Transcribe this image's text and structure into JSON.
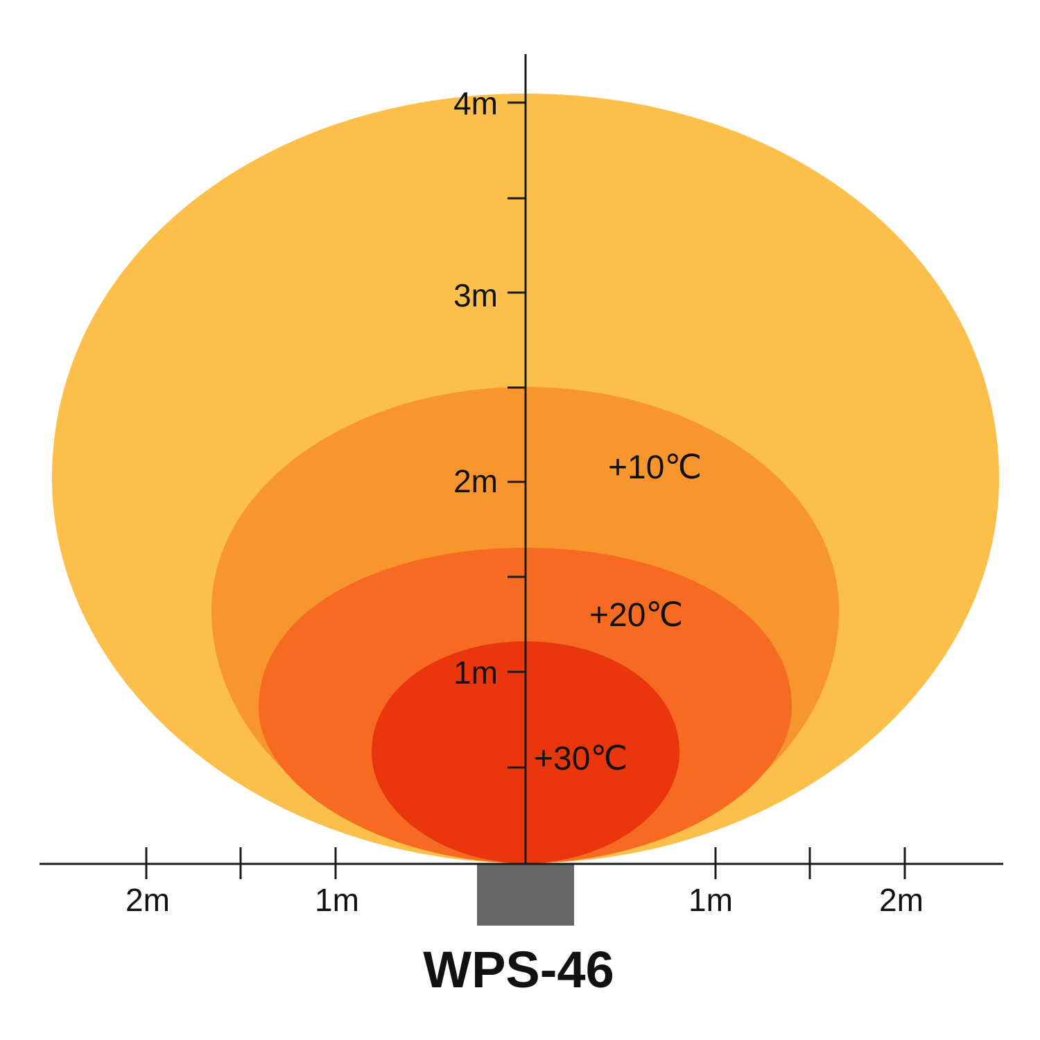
{
  "zones": [
    {
      "label": "",
      "color": "#FBBF4A"
    },
    {
      "label": "+10℃",
      "color": "#F8952C"
    },
    {
      "label": "+20℃",
      "color": "#F66A22"
    },
    {
      "label": "+30℃",
      "color": "#EA360D"
    }
  ],
  "vertical_axis": {
    "labels": [
      "1m",
      "2m",
      "3m",
      "4m"
    ]
  },
  "horizontal_axis": {
    "left_labels": [
      "2m",
      "1m"
    ],
    "right_labels": [
      "1m",
      "2m"
    ]
  },
  "device": {
    "name": "WPS-46",
    "color": "#666666"
  }
}
